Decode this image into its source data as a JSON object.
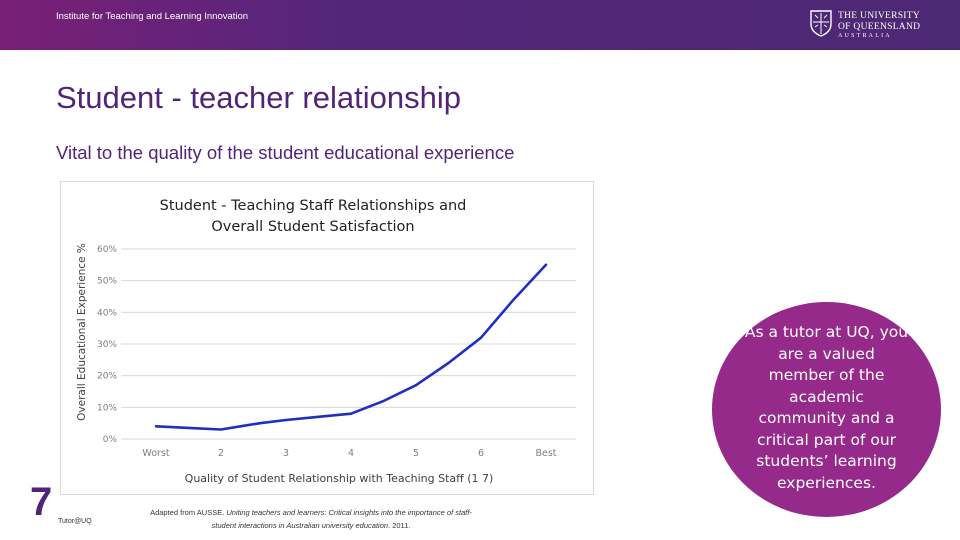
{
  "header": {
    "institute": "Institute for Teaching and Learning Innovation",
    "logo": {
      "line1": "THE UNIVERSITY",
      "line2": "OF QUEENSLAND",
      "line3": "AUSTRALIA"
    }
  },
  "slide": {
    "title": "Student - teacher relationship",
    "subtitle": "Vital to the quality of the student educational experience",
    "number": "7",
    "footer_left": "Tutor@UQ",
    "citation_prefix": "Adapted from AUSSE. ",
    "citation_italic": "Uniting teachers and learners: Critical insights into the importance of staff-student interactions in Australian university education",
    "citation_suffix": ". 2011."
  },
  "callout": {
    "text": "As a tutor at UQ, you are a valued member of the academic community and a critical part of our students’ learning experiences."
  },
  "colors": {
    "header_purple": "#51247a",
    "callout_purple": "#962a8b",
    "series_line": "#1f2fbf"
  },
  "chart_data": {
    "type": "line",
    "title": "Student - Teaching Staff Relationships and Overall Student Satisfaction",
    "xlabel": "Quality of Student Relationship with Teaching Staff (1   7)",
    "ylabel": "Overall Educational Experience %",
    "categories": [
      "Worst",
      "2",
      "3",
      "4",
      "5",
      "6",
      "Best"
    ],
    "ylim": [
      0,
      60
    ],
    "yticks": [
      "0%",
      "10%",
      "20%",
      "30%",
      "40%",
      "50%",
      "60%"
    ],
    "grid": true,
    "legend": "none",
    "x": [
      1,
      1.5,
      2,
      2.3,
      2.6,
      3,
      3.5,
      4,
      4.5,
      5,
      5.5,
      6,
      6.5,
      7
    ],
    "values": [
      4,
      3.5,
      3,
      4,
      5,
      6,
      7,
      8,
      12,
      17,
      24,
      32,
      44,
      55
    ]
  }
}
